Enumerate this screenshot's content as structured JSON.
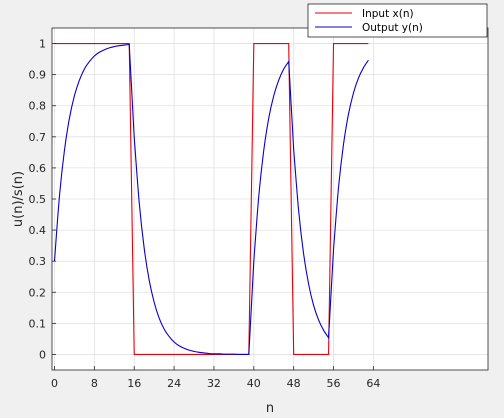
{
  "chart_data": {
    "type": "line",
    "xlabel": "n",
    "ylabel": "u(n)/s(n)",
    "xlim": [
      -0.5,
      87
    ],
    "ylim": [
      -0.05,
      1.05
    ],
    "xticks": [
      0,
      8,
      16,
      24,
      32,
      40,
      48,
      56,
      64
    ],
    "yticks": [
      0,
      0.1,
      0.2,
      0.3,
      0.4,
      0.5,
      0.6,
      0.7,
      0.8,
      0.9,
      1
    ],
    "grid": true,
    "legend_position": "top-right",
    "colors": {
      "input": "#e8000b",
      "output": "#0a00c8"
    },
    "series": [
      {
        "name": "Input    x(n)",
        "x": [
          0,
          15,
          16,
          39,
          40,
          47,
          48,
          55,
          56,
          63
        ],
        "y": [
          1,
          1,
          0,
          0,
          1,
          1,
          0,
          0,
          1,
          1
        ]
      },
      {
        "name": "Output  y(n)",
        "x": [
          0,
          1,
          2,
          3,
          4,
          5,
          6,
          7,
          8,
          9,
          10,
          11,
          12,
          13,
          14,
          15,
          16,
          17,
          18,
          19,
          20,
          21,
          22,
          23,
          24,
          25,
          26,
          27,
          28,
          29,
          30,
          31,
          32,
          33,
          34,
          35,
          36,
          37,
          38,
          39,
          40,
          41,
          42,
          43,
          44,
          45,
          46,
          47,
          48,
          49,
          50,
          51,
          52,
          53,
          54,
          55,
          56,
          57,
          58,
          59,
          60,
          61,
          62,
          63
        ],
        "y": [
          0.3,
          0.51,
          0.657,
          0.76,
          0.832,
          0.882,
          0.918,
          0.942,
          0.96,
          0.972,
          0.98,
          0.986,
          0.99,
          0.993,
          0.995,
          0.997,
          0.698,
          0.489,
          0.342,
          0.239,
          0.168,
          0.117,
          0.082,
          0.058,
          0.04,
          0.028,
          0.02,
          0.014,
          0.01,
          0.007,
          0.005,
          0.003,
          0.002,
          0.002,
          0.001,
          0.001,
          0.001,
          0,
          0,
          0,
          0.3,
          0.51,
          0.657,
          0.76,
          0.832,
          0.882,
          0.918,
          0.942,
          0.66,
          0.462,
          0.323,
          0.226,
          0.158,
          0.111,
          0.078,
          0.054,
          0.338,
          0.537,
          0.676,
          0.773,
          0.841,
          0.889,
          0.922,
          0.946
        ]
      }
    ]
  }
}
